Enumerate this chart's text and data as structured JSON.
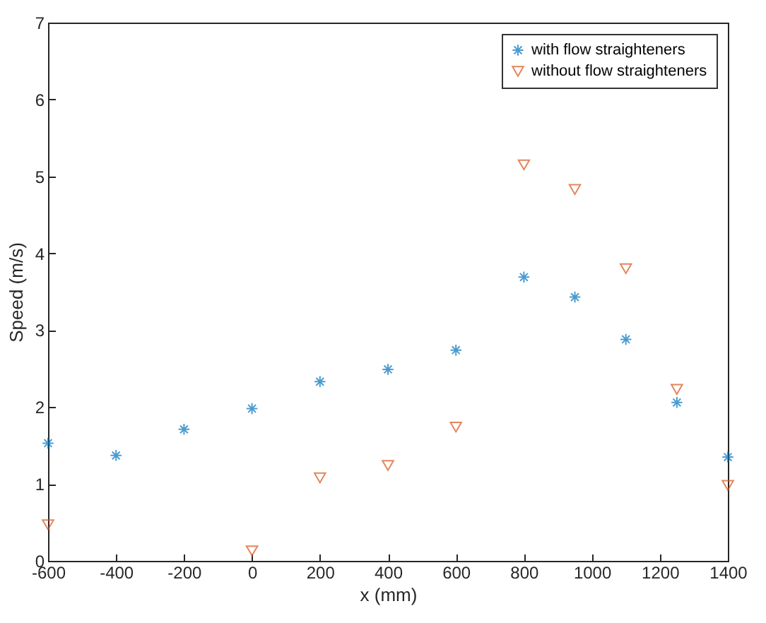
{
  "chart_data": {
    "type": "scatter",
    "xlabel": "x (mm)",
    "ylabel": "Speed (m/s)",
    "x": [
      -600,
      -400,
      -200,
      0,
      200,
      400,
      600,
      800,
      950,
      1100,
      1250,
      1400
    ],
    "series": [
      {
        "name": "with flow straighteners",
        "color": "#0072bd",
        "marker": "cross",
        "values": [
          1.53,
          1.37,
          1.71,
          1.98,
          2.33,
          2.49,
          2.74,
          3.69,
          3.43,
          2.88,
          2.06,
          1.35
        ]
      },
      {
        "name": "without flow straighteners",
        "color": "#d95319",
        "marker": "triangle",
        "x": [
          -600,
          0,
          200,
          400,
          600,
          800,
          950,
          1100,
          1250,
          1400
        ],
        "values": [
          0.47,
          0.13,
          1.08,
          1.24,
          1.74,
          5.15,
          4.83,
          3.8,
          2.23,
          0.98
        ]
      }
    ],
    "xlim": [
      -600,
      1400
    ],
    "xticks": [
      -600,
      -400,
      -200,
      0,
      200,
      400,
      600,
      800,
      1000,
      1200,
      1400
    ],
    "ylim": [
      0,
      7
    ],
    "yticks": [
      0,
      1,
      2,
      3,
      4,
      5,
      6,
      7
    ],
    "grid": false,
    "legend": "top right"
  }
}
